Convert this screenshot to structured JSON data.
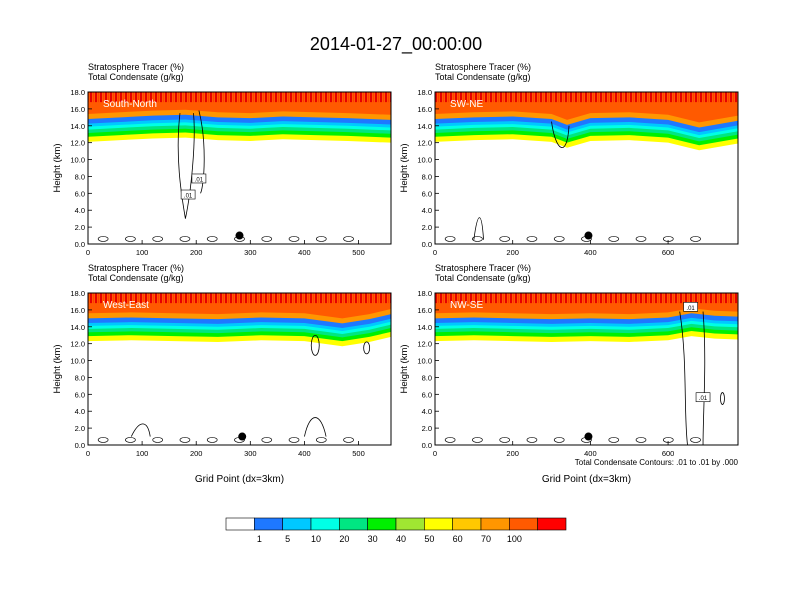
{
  "figure": {
    "title": "2014-01-27_00:00:00",
    "contour_note": "Total Condensate Contours: .01 to .01 by .000"
  },
  "colorbar": {
    "labels": [
      "1",
      "5",
      "10",
      "20",
      "30",
      "40",
      "50",
      "60",
      "70",
      "100"
    ],
    "colors": [
      "#ffffff",
      "#1e78ff",
      "#00c8ff",
      "#00ffe6",
      "#00e682",
      "#00f000",
      "#a0e632",
      "#ffff00",
      "#ffc800",
      "#ff9600",
      "#ff5a00",
      "#ff0000"
    ]
  },
  "chart_data": [
    {
      "type": "heatmap",
      "panel": "South-North",
      "header_line1": "Stratosphere Tracer   (%)",
      "header_line2": "Total Condensate   (g/kg)",
      "ylabel": "Height (km)",
      "xlabel": "",
      "xlim": [
        0,
        560
      ],
      "ylim": [
        0,
        18
      ],
      "x_ticks": [
        "0",
        "100",
        "200",
        "300",
        "400",
        "500"
      ],
      "y_ticks": [
        "0.0",
        "2.0",
        "4.0",
        "6.0",
        "8.0",
        "10.0",
        "12.0",
        "14.0",
        "16.0",
        "18.0"
      ],
      "contour_labels": [
        ".01",
        ".01"
      ],
      "tropopause_km": [
        [
          0,
          14.6
        ],
        [
          60,
          14.8
        ],
        [
          120,
          15.0
        ],
        [
          180,
          15.1
        ],
        [
          240,
          14.8
        ],
        [
          300,
          14.7
        ],
        [
          360,
          14.9
        ],
        [
          420,
          14.8
        ],
        [
          480,
          14.7
        ],
        [
          560,
          14.5
        ]
      ],
      "marker": {
        "x": 280,
        "y": 1.0
      }
    },
    {
      "type": "heatmap",
      "panel": "SW-NE",
      "header_line1": "Stratosphere Tracer   (%)",
      "header_line2": "Total Condensate   (g/kg)",
      "ylabel": "Height (km)",
      "xlabel": "",
      "xlim": [
        0,
        780
      ],
      "ylim": [
        0,
        18
      ],
      "x_ticks": [
        "0",
        "200",
        "400",
        "600"
      ],
      "y_ticks": [
        "0.0",
        "2.0",
        "4.0",
        "6.0",
        "8.0",
        "10.0",
        "12.0",
        "14.0",
        "16.0",
        "18.0"
      ],
      "contour_labels": [],
      "tropopause_km": [
        [
          0,
          14.6
        ],
        [
          100,
          14.8
        ],
        [
          200,
          14.9
        ],
        [
          300,
          14.6
        ],
        [
          340,
          13.9
        ],
        [
          400,
          14.7
        ],
        [
          500,
          14.8
        ],
        [
          600,
          14.5
        ],
        [
          680,
          13.6
        ],
        [
          780,
          14.4
        ]
      ],
      "marker": {
        "x": 395,
        "y": 1.0
      }
    },
    {
      "type": "heatmap",
      "panel": "West-East",
      "header_line1": "Stratosphere Tracer   (%)",
      "header_line2": "Total Condensate   (g/kg)",
      "ylabel": "Height (km)",
      "xlabel": "Grid Point (dx=3km)",
      "xlim": [
        0,
        560
      ],
      "ylim": [
        0,
        18
      ],
      "x_ticks": [
        "0",
        "100",
        "200",
        "300",
        "400",
        "500"
      ],
      "y_ticks": [
        "0.0",
        "2.0",
        "4.0",
        "6.0",
        "8.0",
        "10.0",
        "12.0",
        "14.0",
        "16.0",
        "18.0"
      ],
      "contour_labels": [],
      "tropopause_km": [
        [
          0,
          14.8
        ],
        [
          80,
          14.9
        ],
        [
          160,
          14.8
        ],
        [
          240,
          14.7
        ],
        [
          320,
          14.9
        ],
        [
          400,
          14.8
        ],
        [
          470,
          14.2
        ],
        [
          520,
          14.7
        ],
        [
          560,
          15.3
        ]
      ],
      "marker": {
        "x": 285,
        "y": 1.0
      }
    },
    {
      "type": "heatmap",
      "panel": "NW-SE",
      "header_line1": "Stratosphere Tracer   (%)",
      "header_line2": "Total Condensate   (g/kg)",
      "ylabel": "Height (km)",
      "xlabel": "Grid Point (dx=3km)",
      "xlim": [
        0,
        780
      ],
      "ylim": [
        0,
        18
      ],
      "x_ticks": [
        "0",
        "200",
        "400",
        "600"
      ],
      "y_ticks": [
        "0.0",
        "2.0",
        "4.0",
        "6.0",
        "8.0",
        "10.0",
        "12.0",
        "14.0",
        "16.0",
        "18.0"
      ],
      "contour_labels": [
        ".01",
        ".01"
      ],
      "tropopause_km": [
        [
          0,
          14.8
        ],
        [
          100,
          14.9
        ],
        [
          200,
          14.8
        ],
        [
          300,
          14.7
        ],
        [
          400,
          14.8
        ],
        [
          500,
          14.7
        ],
        [
          600,
          14.9
        ],
        [
          660,
          15.4
        ],
        [
          720,
          15.1
        ],
        [
          780,
          15.0
        ]
      ],
      "marker": {
        "x": 395,
        "y": 1.0
      }
    }
  ]
}
